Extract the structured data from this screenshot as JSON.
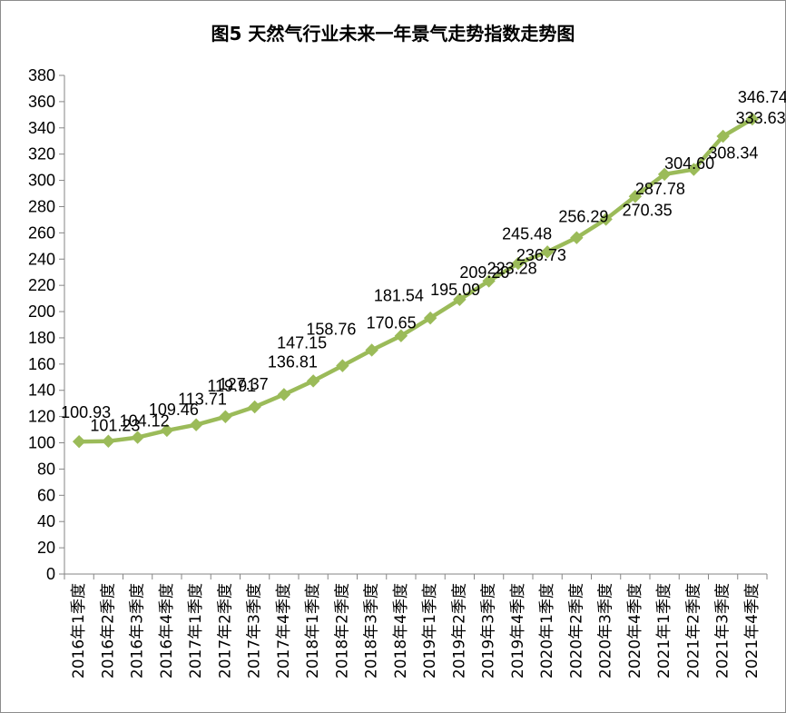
{
  "chart_data": {
    "type": "line",
    "title": "图5 天然气行业未来一年景气走势指数走势图",
    "xlabel": "",
    "ylabel": "",
    "ylim": [
      0,
      380
    ],
    "ytick_step": 20,
    "grid": false,
    "legend": "none",
    "colors": {
      "line": "#9bbb59",
      "marker": "#9bbb59"
    },
    "categories": [
      "2016年1季度",
      "2016年2季度",
      "2016年3季度",
      "2016年4季度",
      "2017年1季度",
      "2017年2季度",
      "2017年3季度",
      "2017年4季度",
      "2018年1季度",
      "2018年2季度",
      "2018年3季度",
      "2018年4季度",
      "2019年1季度",
      "2019年2季度",
      "2019年3季度",
      "2019年4季度",
      "2020年1季度",
      "2020年2季度",
      "2020年3季度",
      "2020年4季度",
      "2021年1季度",
      "2021年2季度",
      "2021年3季度",
      "2021年4季度"
    ],
    "series": [
      {
        "values": [
          100.93,
          101.23,
          104.12,
          109.46,
          113.71,
          119.91,
          127.37,
          136.81,
          147.15,
          158.76,
          170.65,
          181.54,
          195.09,
          209.2,
          223.28,
          236.73,
          245.48,
          256.29,
          270.35,
          287.78,
          304.6,
          308.34,
          333.63,
          346.74
        ],
        "labels": [
          "100.93",
          "101.23",
          "104.12",
          "109.46",
          "113.71",
          "119.91",
          "127.37",
          "136.81",
          "147.15",
          "158.76",
          "170.65",
          "181.54",
          "195.09",
          "209.20",
          "223.28",
          "236.73",
          "245.48",
          "256.29",
          "270.35",
          "287.78",
          "304.60",
          "308.34",
          "333.63",
          "346.74"
        ]
      }
    ]
  }
}
